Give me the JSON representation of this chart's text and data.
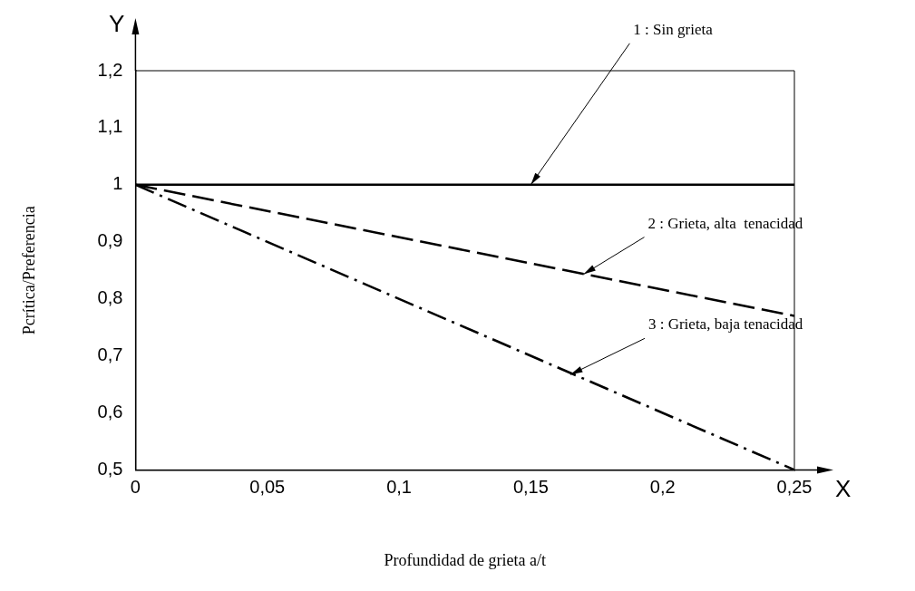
{
  "chart_data": {
    "type": "line",
    "xlabel": "Profundidad de grieta a/t",
    "ylabel": "Pcrítica/Preferencia",
    "x": [
      0,
      0.25
    ],
    "series": [
      {
        "color": "#000000",
        "values": [
          1,
          1
        ],
        "line_style": "solid"
      },
      {
        "color": "#000000",
        "values": [
          1,
          0.77
        ],
        "line_style": "dashed"
      },
      {
        "color": "#000000",
        "values": [
          1,
          0.5
        ],
        "line_style": "dashdot"
      }
    ],
    "xlim": [
      0,
      0.25
    ],
    "ylim": [
      0.5,
      1.2
    ],
    "xticks": [
      0,
      {
        "value": 0.05,
        "label": "0,05"
      },
      {
        "value": 0.1,
        "label": "0,1"
      },
      {
        "value": 0.15,
        "label": "0,15"
      },
      {
        "value": 0.2,
        "label": "0,2"
      },
      {
        "value": 0.25,
        "label": "0,25"
      }
    ],
    "yticks": [
      {
        "value": 0.5,
        "label": "0,5"
      },
      {
        "value": 0.6,
        "label": "0,6"
      },
      {
        "value": 0.7,
        "label": "0,7"
      },
      {
        "value": 0.8,
        "label": "0,8"
      },
      {
        "value": 0.9,
        "label": "0,9"
      },
      1,
      {
        "value": 1.1,
        "label": "1,1"
      },
      {
        "value": 1.2,
        "label": "1,2"
      }
    ],
    "grid": false,
    "legend": false,
    "marker": "none",
    "annotations": [
      {
        "text": "1 : Sin grieta",
        "x": 0.15,
        "y": 1
      },
      {
        "text": "2 : Grieta, alta  tenacidad",
        "x": 0.17,
        "y": 0.843
      },
      {
        "text": "3 : Grieta, baja tenacidad",
        "x": 0.165,
        "y": 0.667
      },
      "Y",
      "X"
    ]
  }
}
